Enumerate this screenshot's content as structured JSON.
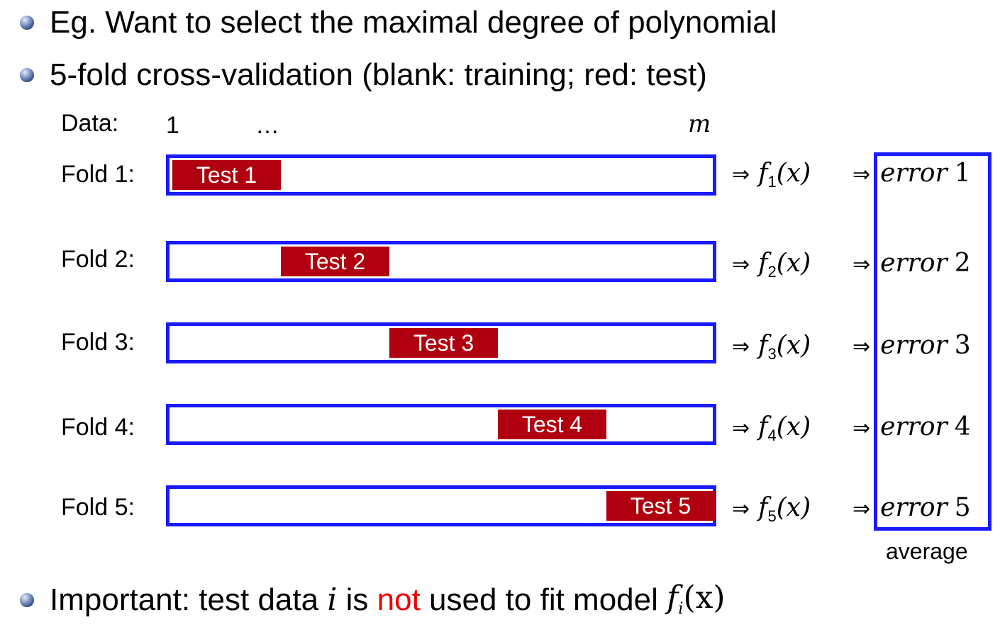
{
  "bullets": [
    {
      "text": "Eg. Want to select the maximal degree of polynomial"
    },
    {
      "text": "5-fold cross-validation (blank: training; red: test)"
    }
  ],
  "data_row": {
    "label": "Data:",
    "start": "1",
    "ellipsis": "…",
    "end": "m"
  },
  "folds": [
    {
      "label": "Fold 1:",
      "test_label": "Test 1",
      "model": "f",
      "index": "1",
      "arg": "(x)",
      "error_word": "error",
      "error_index": "1",
      "test_position": 1
    },
    {
      "label": "Fold 2:",
      "test_label": "Test 2",
      "model": "f",
      "index": "2",
      "arg": "(x)",
      "error_word": "error",
      "error_index": "2",
      "test_position": 2
    },
    {
      "label": "Fold 3:",
      "test_label": "Test 3",
      "model": "f",
      "index": "3",
      "arg": "(x)",
      "error_word": "error",
      "error_index": "3",
      "test_position": 3
    },
    {
      "label": "Fold 4:",
      "test_label": "Test 4",
      "model": "f",
      "index": "4",
      "arg": "(x)",
      "error_word": "error",
      "error_index": "4",
      "test_position": 4
    },
    {
      "label": "Fold 5:",
      "test_label": "Test 5",
      "model": "f",
      "index": "5",
      "arg": "(x)",
      "error_word": "error",
      "error_index": "5",
      "test_position": 5
    }
  ],
  "arrow": "⇒",
  "average_label": "average",
  "important": {
    "prefix": "Important: test data ",
    "var": "i",
    "mid": " is ",
    "highlight": "not",
    "suffix": " used to fit model ",
    "model": "f",
    "model_index": "i",
    "model_arg": "(x)"
  },
  "colors": {
    "bar_border": "#1a1aff",
    "test_fill": "#b0000f",
    "highlight_text": "#ee0000"
  }
}
